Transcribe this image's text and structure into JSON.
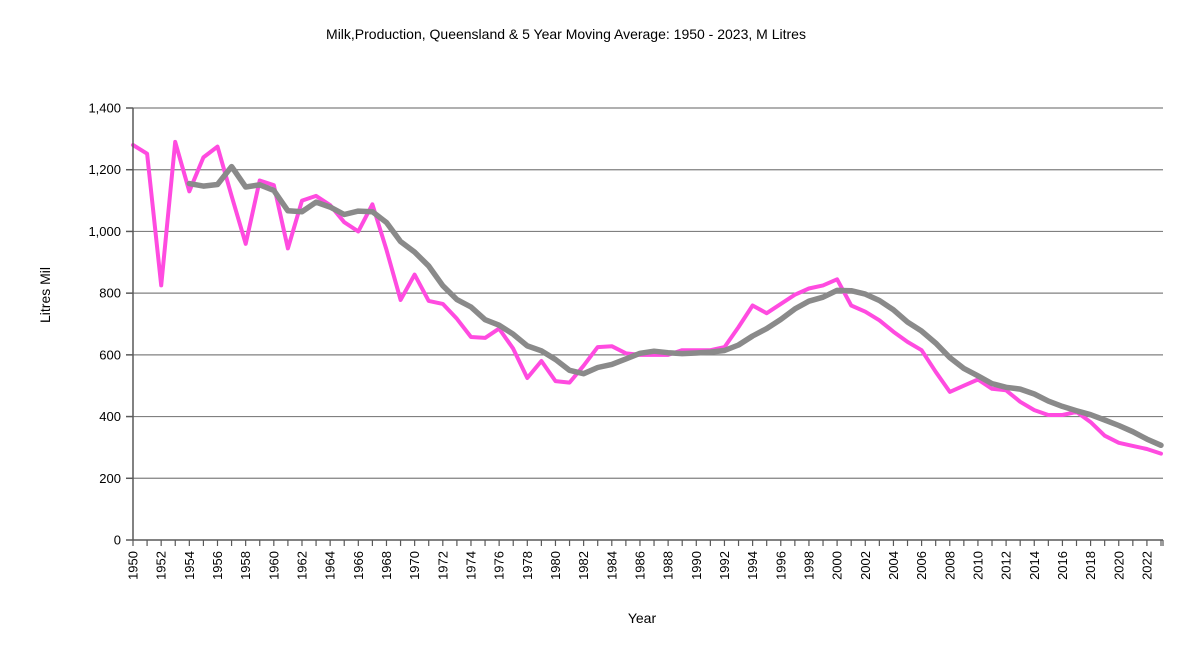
{
  "title": "Milk,Production, Queensland & 5 Year Moving Average: 1950 - 2023, M Litres",
  "chart_data": {
    "type": "line",
    "title": "Milk,Production, Queensland & 5 Year Moving Average: 1950 - 2023, M Litres",
    "xlabel": "Year",
    "ylabel": "Litres Mil",
    "ylim": [
      0,
      1400
    ],
    "grid": true,
    "legend": "none",
    "y_ticks": [
      0,
      200,
      400,
      600,
      800,
      1000,
      1200,
      1400
    ],
    "y_tick_labels": [
      "0",
      "200",
      "400",
      "600",
      "800",
      "1,000",
      "1,200",
      "1,400"
    ],
    "x_label_interval": 2,
    "x": [
      1950,
      1951,
      1952,
      1953,
      1954,
      1955,
      1956,
      1957,
      1958,
      1959,
      1960,
      1961,
      1962,
      1963,
      1964,
      1965,
      1966,
      1967,
      1968,
      1969,
      1970,
      1971,
      1972,
      1973,
      1974,
      1975,
      1976,
      1977,
      1978,
      1979,
      1980,
      1981,
      1982,
      1983,
      1984,
      1985,
      1986,
      1987,
      1988,
      1989,
      1990,
      1991,
      1992,
      1993,
      1994,
      1995,
      1996,
      1997,
      1998,
      1999,
      2000,
      2001,
      2002,
      2003,
      2004,
      2005,
      2006,
      2007,
      2008,
      2009,
      2010,
      2011,
      2012,
      2013,
      2014,
      2015,
      2016,
      2017,
      2018,
      2019,
      2020,
      2021,
      2022,
      2023
    ],
    "series": [
      {
        "name": "Milk Production (M Litres)",
        "color": "#ff4be0",
        "stroke_width": 4,
        "values": [
          1280,
          1252,
          825,
          1290,
          1130,
          1240,
          1275,
          1115,
          960,
          1165,
          1150,
          945,
          1100,
          1115,
          1085,
          1030,
          1000,
          1088,
          940,
          778,
          860,
          775,
          765,
          717,
          658,
          655,
          685,
          620,
          525,
          580,
          515,
          510,
          565,
          625,
          628,
          605,
          600,
          600,
          600,
          615,
          615,
          615,
          625,
          690,
          760,
          735,
          765,
          795,
          815,
          825,
          845,
          760,
          740,
          712,
          675,
          642,
          615,
          545,
          480,
          500,
          520,
          490,
          485,
          448,
          421,
          405,
          405,
          415,
          382,
          338,
          315,
          305,
          295,
          280
        ]
      },
      {
        "name": "5 Year Moving Average",
        "color": "#8a8a8a",
        "stroke_width": 5.5,
        "values": [
          null,
          null,
          null,
          null,
          1155,
          1147,
          1152,
          1210,
          1144,
          1151,
          1133,
          1067,
          1064,
          1095,
          1079,
          1055,
          1066,
          1064,
          1029,
          967,
          933,
          888,
          824,
          779,
          755,
          714,
          696,
          667,
          629,
          613,
          585,
          550,
          539,
          559,
          569,
          587,
          605,
          612,
          607,
          604,
          606,
          609,
          614,
          632,
          661,
          685,
          715,
          749,
          774,
          787,
          809,
          808,
          797,
          776,
          746,
          706,
          677,
          638,
          591,
          556,
          532,
          507,
          495,
          489,
          473,
          450,
          433,
          419,
          406,
          389,
          371,
          351,
          327,
          307
        ]
      }
    ],
    "colors": {
      "gridline": "#808080",
      "axis": "#595959",
      "background": "#ffffff",
      "text": "#000000"
    }
  }
}
